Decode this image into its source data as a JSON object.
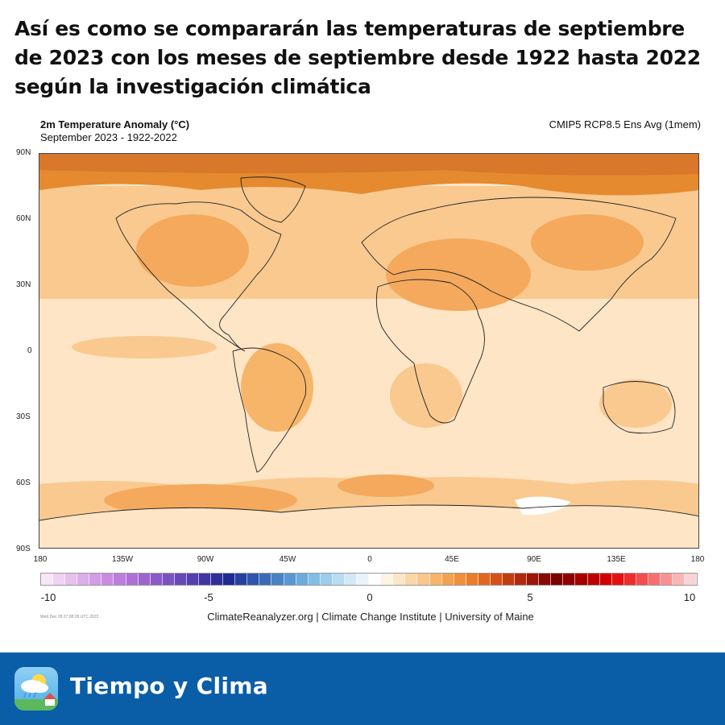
{
  "headline": "Así es como se compararán las temperaturas de septiembre de 2023 con los meses de septiembre desde 1922 hasta 2022 según la investigación climática",
  "map": {
    "title": "2m Temperature Anomaly (°C)",
    "subtitle": "September 2023 - 1922-2022",
    "model": "CMIP5 RCP8.5 Ens Avg (1mem)",
    "lat_labels": [
      "90N",
      "60N",
      "30N",
      "0",
      "30S",
      "60S",
      "90S"
    ],
    "lon_labels": [
      "180",
      "135W",
      "90W",
      "45W",
      "0",
      "45E",
      "90E",
      "135E",
      "180"
    ],
    "colors": {
      "pale": "#fde5c6",
      "light": "#f9c98f",
      "medium": "#f4a95c",
      "dark": "#e58a2f",
      "coast": "#222222",
      "ice": "#ffffff"
    }
  },
  "colorbar": {
    "ticks": [
      "-10",
      "-5",
      "0",
      "5",
      "10"
    ],
    "colors": [
      "#f7e6f7",
      "#efd2f3",
      "#e5c0ee",
      "#dcaeeb",
      "#d39ce6",
      "#c98ce2",
      "#bd7ddc",
      "#af70d6",
      "#9e64cf",
      "#8c5ac8",
      "#7a52c1",
      "#6748b8",
      "#553faf",
      "#4236a4",
      "#2f2e9a",
      "#1f2a92",
      "#25409e",
      "#2d55ab",
      "#3a6bb8",
      "#4982c5",
      "#5a97d2",
      "#6cacdd",
      "#83bde6",
      "#9ccdee",
      "#b8dcf4",
      "#d2e9f8",
      "#e8f3fb",
      "#ffffff",
      "#fff3e3",
      "#fde5c6",
      "#fbd6a6",
      "#f9c78a",
      "#f7b56a",
      "#f4a24e",
      "#f0903a",
      "#ea7c2a",
      "#e1671f",
      "#d35218",
      "#c23c12",
      "#b0290e",
      "#9b1709",
      "#870b05",
      "#7a0000",
      "#8e0000",
      "#a50000",
      "#bd0000",
      "#d20000",
      "#e41010",
      "#ef2c2c",
      "#f54c4c",
      "#f76e6e",
      "#f89292",
      "#f9b5b5",
      "#fad4d4"
    ]
  },
  "timestamp": "Wed Dec 28 07:08:28 UTC 2022",
  "credits": "ClimateReanalyzer.org | Climate Change Institute | University of Maine",
  "footer": {
    "brand": "Tiempo y Clima",
    "icon": "weather-app-icon"
  }
}
